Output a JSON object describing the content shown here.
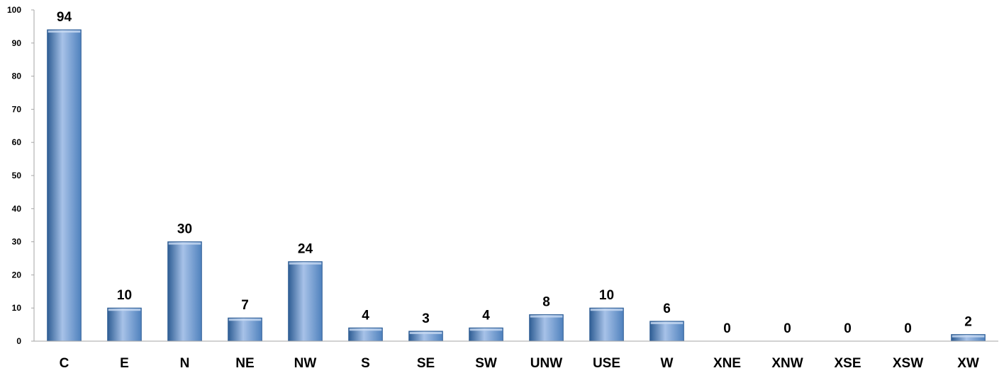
{
  "chart_data": {
    "type": "bar",
    "categories": [
      "C",
      "E",
      "N",
      "NE",
      "NW",
      "S",
      "SE",
      "SW",
      "UNW",
      "USE",
      "W",
      "XNE",
      "XNW",
      "XSE",
      "XSW",
      "XW"
    ],
    "values": [
      94,
      10,
      30,
      7,
      24,
      4,
      3,
      4,
      8,
      10,
      6,
      0,
      0,
      0,
      0,
      2
    ],
    "data_labels": [
      "94",
      "10",
      "30",
      "7",
      "24",
      "4",
      "3",
      "4",
      "8",
      "10",
      "6",
      "0",
      "0",
      "0",
      "0",
      "2"
    ],
    "yticks": [
      "0",
      "10",
      "20",
      "30",
      "40",
      "50",
      "60",
      "70",
      "80",
      "90",
      "100"
    ],
    "ylim": [
      0,
      100
    ],
    "title": "",
    "xlabel": "",
    "ylabel": "",
    "grid": false,
    "legend": "none",
    "bar_color": "#4f81bd",
    "bar_color_light": "#a7c2e8",
    "bar_color_dark": "#2e5d94",
    "axis_color": "#a6a6a6"
  }
}
